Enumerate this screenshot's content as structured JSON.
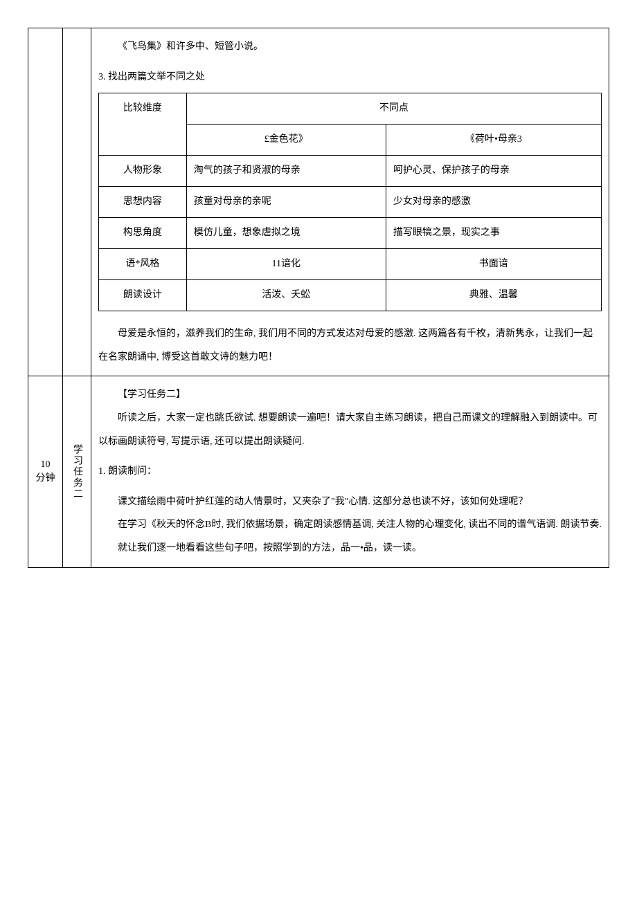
{
  "row1": {
    "intro_line": "《飞鸟集》和许多中、短管小说。",
    "section3_title": "3. 找出两篇文举不同之处",
    "comparison": {
      "header_dim": "比较维度",
      "header_diff": "不同点",
      "col1_title": "£金色花》",
      "col2_title": "《荷叶•母亲3",
      "rows": [
        {
          "dim": "人物形象",
          "left": "淘气的孩子和贤淑的母亲",
          "right": "呵护心灵、保护孩子的母亲"
        },
        {
          "dim": "思想内容",
          "left": "孩童对母亲的亲呢",
          "right": "少女对母亲的感激"
        },
        {
          "dim": "构思角度",
          "left": "模仿儿童，想象虐拟之境",
          "right": "描写眼犒之景，现实之事"
        },
        {
          "dim": "语*风格",
          "left": "11谙化",
          "right": "书面谙"
        },
        {
          "dim": "朗读设计",
          "left": "活泼、夭蚣",
          "right": "典雅、温馨"
        }
      ]
    },
    "summary": "母爱是永恒的，滋养我们的生命, 我们用不同的方式发达对母爱的感激. 这两篇各有千枚，清新隽永，让我们一起在名家朗诵中, 博受这首敢文诗的魅力吧！"
  },
  "row2": {
    "time": "10\n分钟",
    "task_label": "学习任务二",
    "task_title": "【学习任务二】",
    "intro": "听读之后，大家一定也跳氏欲试. 想要朗读一遍吧！请大家自主练习朗读，把自己而课文的理解融入到朗读中。可以标画朗读符号, 写提示语, 还可以提出朗读疑问.",
    "q1_label": "1. 朗读制问：",
    "q1_text": "课文描绘雨中荷叶护红莲的动人情景时，又夹杂了\"我\"心情. 这部分总也读不好，该如何处理呢？",
    "para2": "在学习《秋天的怀念B时, 我们依据场景，确定朗读感情基调, 关注人物的心理变化, 读出不同的谱气语调. 朗读节奏.",
    "para3": "就让我们逐一地看看这些句子吧，按照学到的方法，品一•品，读一读。"
  }
}
